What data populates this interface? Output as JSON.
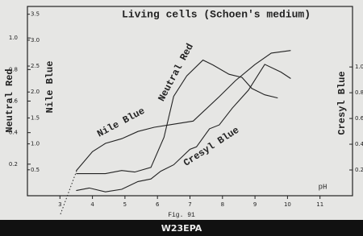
{
  "chart_data": {
    "type": "line",
    "title": "Living cells (Schoen's medium)",
    "xlabel": "pH",
    "ylabel": "Neutral Red",
    "y2label": "Nile Blue",
    "y3label": "Cresyl Blue",
    "caption": "Fig. 91",
    "image_id": "W23EPA",
    "xlim": [
      2,
      12
    ],
    "xticks": [
      3,
      4,
      5,
      6,
      7,
      8,
      9,
      10,
      11
    ],
    "ylim": [
      0,
      1.2
    ],
    "yticks": [
      {
        "value": 1,
        "label": "1.0"
      },
      0.8,
      0.6,
      0.4,
      0.2
    ],
    "y2lim": [
      0,
      3.65
    ],
    "y2ticks": [
      3.5,
      {
        "value": 3,
        "label": "3.0"
      },
      2.5,
      {
        "value": 2,
        "label": "2.0"
      },
      1.5,
      {
        "value": 1,
        "label": "1.0"
      },
      0.5
    ],
    "y3lim": [
      0,
      1.47
    ],
    "y3ticks": [
      {
        "value": 1,
        "label": "1.0"
      },
      0.8,
      0.6,
      0.4,
      0.2
    ],
    "series": [
      {
        "name": "Nile Blue",
        "axis": "y2",
        "color": "#222222",
        "x": [
          3.5,
          4.0,
          4.4,
          4.9,
          5.4,
          5.9,
          6.4,
          7.1,
          7.9,
          8.4,
          9.0,
          9.5,
          10.1
        ],
        "values": [
          0.48,
          0.85,
          1.01,
          1.1,
          1.24,
          1.32,
          1.37,
          1.44,
          1.91,
          2.22,
          2.53,
          2.75,
          2.8
        ]
      },
      {
        "name": "Neutral Red",
        "axis": "y",
        "color": "#222222",
        "x": [
          3.5,
          4.4,
          4.9,
          5.3,
          5.8,
          6.2,
          6.5,
          6.9,
          7.4,
          7.7,
          8.2,
          8.6,
          8.9,
          9.3,
          9.7
        ],
        "values": [
          0.14,
          0.14,
          0.16,
          0.15,
          0.18,
          0.37,
          0.63,
          0.76,
          0.86,
          0.83,
          0.77,
          0.75,
          0.68,
          0.64,
          0.62
        ]
      },
      {
        "name": "Cresyl Blue",
        "axis": "y3",
        "color": "#222222",
        "x": [
          3.5,
          3.9,
          4.4,
          4.9,
          5.4,
          5.8,
          6.1,
          6.5,
          7.0,
          7.2,
          7.6,
          7.9,
          8.3,
          8.8,
          9.3,
          9.8,
          10.1
        ],
        "values": [
          0.04,
          0.06,
          0.03,
          0.05,
          0.11,
          0.13,
          0.19,
          0.24,
          0.36,
          0.38,
          0.52,
          0.55,
          0.68,
          0.82,
          1.02,
          0.96,
          0.91
        ]
      }
    ]
  }
}
